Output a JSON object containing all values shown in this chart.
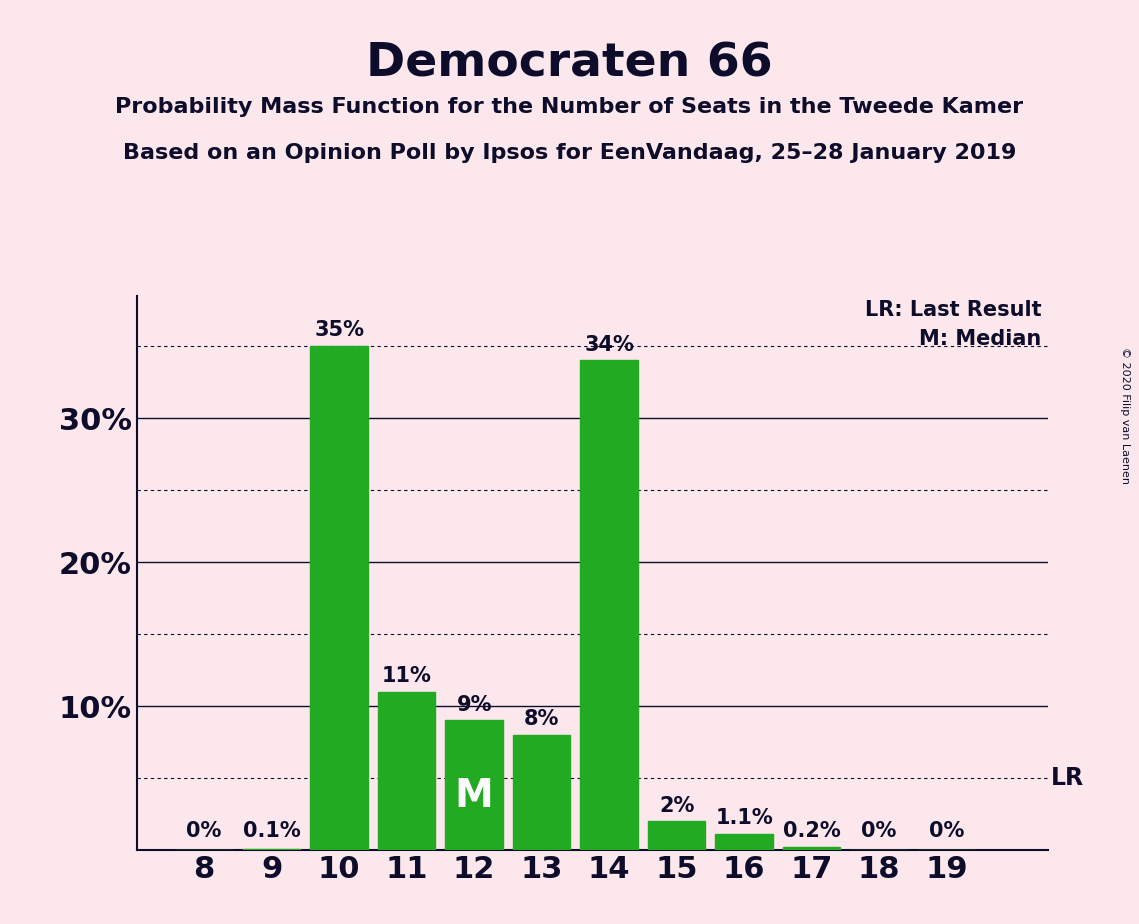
{
  "title": "Democraten 66",
  "subtitle1": "Probability Mass Function for the Number of Seats in the Tweede Kamer",
  "subtitle2": "Based on an Opinion Poll by Ipsos for EenVandaag, 25–28 January 2019",
  "copyright": "© 2020 Filip van Laenen",
  "seats": [
    8,
    9,
    10,
    11,
    12,
    13,
    14,
    15,
    16,
    17,
    18,
    19
  ],
  "probabilities": [
    0.0,
    0.001,
    0.35,
    0.11,
    0.09,
    0.08,
    0.34,
    0.02,
    0.011,
    0.002,
    0.0,
    0.0
  ],
  "labels": [
    "0%",
    "0.1%",
    "35%",
    "11%",
    "9%",
    "8%",
    "34%",
    "2%",
    "1.1%",
    "0.2%",
    "0%",
    "0%"
  ],
  "bar_color": "#22aa22",
  "background_color": "#fce8ec",
  "text_color": "#0d0d2b",
  "median_seat": 12,
  "lr_value": 0.05,
  "ylim": [
    0,
    0.385
  ],
  "yticks": [
    0.05,
    0.1,
    0.15,
    0.2,
    0.25,
    0.3,
    0.35
  ],
  "legend_lr": "LR: Last Result",
  "legend_m": "M: Median"
}
